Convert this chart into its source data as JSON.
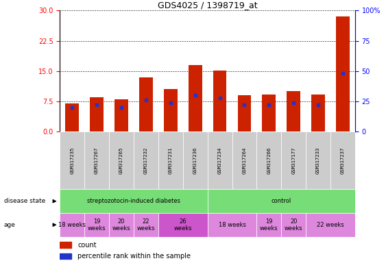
{
  "title": "GDS4025 / 1398719_at",
  "samples": [
    "GSM317235",
    "GSM317267",
    "GSM317265",
    "GSM317232",
    "GSM317231",
    "GSM317236",
    "GSM317234",
    "GSM317264",
    "GSM317266",
    "GSM317177",
    "GSM317233",
    "GSM317237"
  ],
  "counts": [
    7.0,
    8.5,
    8.0,
    13.5,
    10.5,
    16.5,
    15.2,
    9.0,
    9.2,
    10.0,
    9.2,
    28.5
  ],
  "percentile_ranks": [
    20,
    22,
    20,
    26,
    24,
    30,
    28,
    22,
    22,
    24,
    22,
    48
  ],
  "ylim_left": [
    0,
    30
  ],
  "ylim_right": [
    0,
    100
  ],
  "yticks_left": [
    0,
    7.5,
    15,
    22.5,
    30
  ],
  "yticks_right": [
    0,
    25,
    50,
    75,
    100
  ],
  "bar_color": "#cc2200",
  "marker_color": "#2233cc",
  "sample_bg": "#cccccc",
  "disease_groups": [
    {
      "text": "streptozotocin-induced diabetes",
      "start": 0,
      "end": 6,
      "color": "#77dd77"
    },
    {
      "text": "control",
      "start": 6,
      "end": 12,
      "color": "#77dd77"
    }
  ],
  "age_groups": [
    {
      "text": "18 weeks",
      "start": 0,
      "end": 1,
      "color": "#dd88dd"
    },
    {
      "text": "19\nweeks",
      "start": 1,
      "end": 2,
      "color": "#dd88dd"
    },
    {
      "text": "20\nweeks",
      "start": 2,
      "end": 3,
      "color": "#dd88dd"
    },
    {
      "text": "22\nweeks",
      "start": 3,
      "end": 4,
      "color": "#dd88dd"
    },
    {
      "text": "26\nweeks",
      "start": 4,
      "end": 6,
      "color": "#cc55cc"
    },
    {
      "text": "18 weeks",
      "start": 6,
      "end": 8,
      "color": "#dd88dd"
    },
    {
      "text": "19\nweeks",
      "start": 8,
      "end": 9,
      "color": "#dd88dd"
    },
    {
      "text": "20\nweeks",
      "start": 9,
      "end": 10,
      "color": "#dd88dd"
    },
    {
      "text": "22 weeks",
      "start": 10,
      "end": 12,
      "color": "#dd88dd"
    }
  ],
  "legend_items": [
    {
      "color": "#cc2200",
      "label": "count"
    },
    {
      "color": "#2233cc",
      "label": "percentile rank within the sample"
    }
  ],
  "fig_width": 5.63,
  "fig_height": 3.84,
  "dpi": 100
}
